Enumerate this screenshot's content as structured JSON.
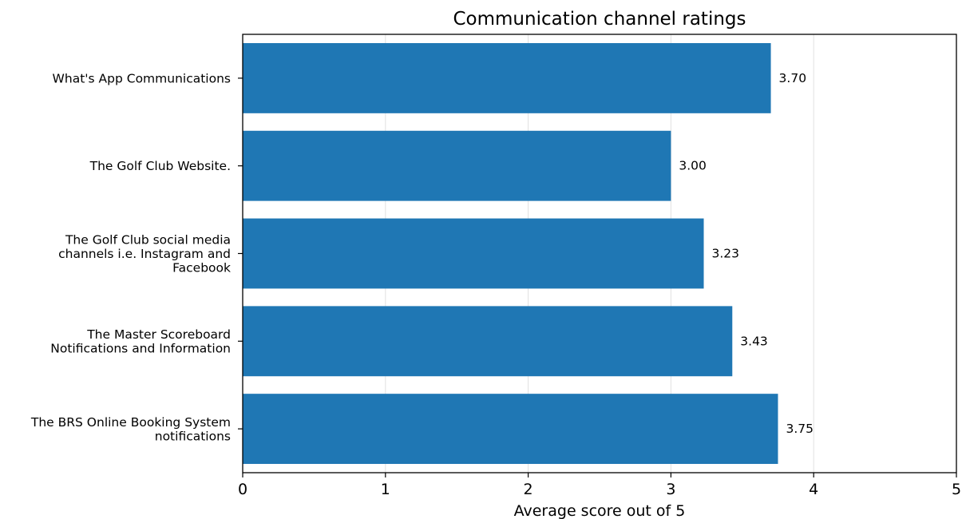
{
  "chart_data": {
    "type": "bar",
    "orientation": "horizontal",
    "title": "Communication channel ratings",
    "xlabel": "Average score out of 5",
    "ylabel": "",
    "xlim": [
      0,
      5
    ],
    "xticks": [
      "0",
      "1",
      "2",
      "3",
      "4",
      "5"
    ],
    "grid": "vertical",
    "categories": [
      [
        "What's App Communications"
      ],
      [
        "The Golf Club Website."
      ],
      [
        "The Golf Club social media",
        "channels i.e. Instagram and",
        "Facebook"
      ],
      [
        "The Master Scoreboard",
        "Notifications and Information"
      ],
      [
        "The BRS Online Booking System",
        "notifications"
      ]
    ],
    "values": [
      3.7,
      3.0,
      3.23,
      3.43,
      3.75
    ],
    "value_labels": [
      "3.70",
      "3.00",
      "3.23",
      "3.43",
      "3.75"
    ],
    "bar_color": "#1f77b4",
    "grid_color": "#e0e0e0"
  }
}
